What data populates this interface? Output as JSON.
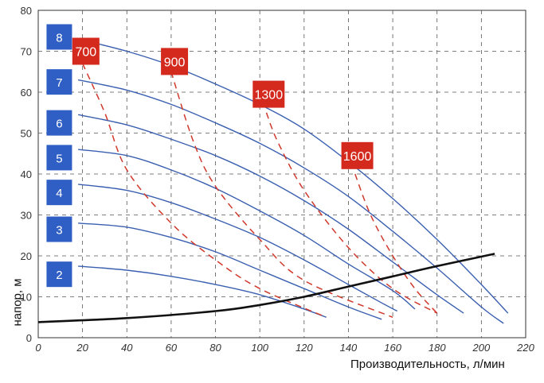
{
  "chart_data": {
    "type": "line",
    "title": "",
    "xlabel": "Производительность, л/мин",
    "ylabel": "напор, м",
    "xlim": [
      0,
      220
    ],
    "ylim": [
      0,
      80
    ],
    "x_ticks": [
      "0",
      "20",
      "40",
      "60",
      "80",
      "100",
      "120",
      "140",
      "160",
      "180",
      "200",
      "220"
    ],
    "y_ticks": [
      "0",
      "10",
      "20",
      "30",
      "40",
      "50",
      "60",
      "70",
      "80"
    ],
    "grid": true,
    "colors": {
      "pump_curves": "#3a5fb0",
      "power_lines": "#d0392b",
      "system_curve": "#111111",
      "pump_badge": "#2f5fc4",
      "power_badge": "#d42a1e"
    },
    "series": [
      {
        "name": "8",
        "kind": "pump",
        "x": [
          18,
          40,
          60,
          80,
          100,
          120,
          140,
          160,
          180,
          200,
          212
        ],
        "y": [
          73,
          70,
          66.5,
          62,
          57,
          51,
          43,
          34,
          24,
          13,
          6
        ]
      },
      {
        "name": "7",
        "kind": "pump",
        "x": [
          18,
          40,
          60,
          80,
          100,
          120,
          140,
          160,
          180,
          200,
          210
        ],
        "y": [
          63,
          60.5,
          57,
          52.5,
          47.5,
          41.5,
          34.5,
          26,
          17,
          7.5,
          3.5
        ]
      },
      {
        "name": "6",
        "kind": "pump",
        "x": [
          18,
          40,
          60,
          80,
          100,
          120,
          140,
          160,
          180,
          192
        ],
        "y": [
          54.5,
          52,
          48.5,
          44.5,
          39.5,
          33.5,
          26.5,
          18.5,
          10.5,
          6
        ]
      },
      {
        "name": "5",
        "kind": "pump",
        "x": [
          18,
          40,
          60,
          80,
          100,
          120,
          140,
          160,
          170
        ],
        "y": [
          46,
          44.5,
          41,
          36.5,
          31,
          25,
          18,
          11.5,
          7
        ]
      },
      {
        "name": "4",
        "kind": "pump",
        "x": [
          18,
          40,
          60,
          80,
          100,
          120,
          140,
          155,
          162
        ],
        "y": [
          37.5,
          36,
          33,
          29,
          24.5,
          19,
          13,
          8.5,
          6.5
        ]
      },
      {
        "name": "3",
        "kind": "pump",
        "x": [
          18,
          40,
          60,
          80,
          100,
          120,
          140,
          155
        ],
        "y": [
          28,
          27,
          24.5,
          21,
          16.5,
          12,
          7.5,
          4.5
        ]
      },
      {
        "name": "2",
        "kind": "pump",
        "x": [
          18,
          40,
          60,
          80,
          100,
          120,
          130
        ],
        "y": [
          17.5,
          16.5,
          15,
          13,
          10.5,
          7,
          5
        ]
      },
      {
        "name": "700",
        "kind": "power",
        "x": [
          20,
          30,
          40,
          60,
          80,
          100,
          130
        ],
        "y": [
          67,
          55,
          41,
          28,
          19,
          12,
          5
        ]
      },
      {
        "name": "900",
        "kind": "power",
        "x": [
          60,
          70,
          80,
          100,
          120,
          160
        ],
        "y": [
          65,
          48,
          37,
          24,
          14,
          5
        ]
      },
      {
        "name": "1300",
        "kind": "power",
        "x": [
          103,
          108,
          120,
          140,
          160,
          180
        ],
        "y": [
          55,
          48,
          36,
          22,
          12,
          6
        ]
      },
      {
        "name": "1600",
        "kind": "power",
        "x": [
          143,
          150,
          160,
          170,
          180
        ],
        "y": [
          40,
          30,
          20,
          12,
          6
        ]
      },
      {
        "name": "system",
        "kind": "system",
        "x": [
          0,
          40,
          80,
          100,
          120,
          140,
          160,
          180,
          206
        ],
        "y": [
          3.8,
          4.8,
          6.5,
          8,
          10,
          12.5,
          15,
          17.5,
          20.5
        ]
      }
    ],
    "annotations": [
      {
        "text": "8",
        "kind": "pump",
        "x": 9.5,
        "y": 73.5
      },
      {
        "text": "7",
        "kind": "pump",
        "x": 9.5,
        "y": 62.5
      },
      {
        "text": "6",
        "kind": "pump",
        "x": 9.5,
        "y": 52.5
      },
      {
        "text": "5",
        "kind": "pump",
        "x": 9.5,
        "y": 44
      },
      {
        "text": "4",
        "kind": "pump",
        "x": 9.5,
        "y": 35.5
      },
      {
        "text": "3",
        "kind": "pump",
        "x": 9.5,
        "y": 26.5
      },
      {
        "text": "2",
        "kind": "pump",
        "x": 9.5,
        "y": 15.5
      },
      {
        "text": "700",
        "kind": "power",
        "x": 21.5,
        "y": 70
      },
      {
        "text": "900",
        "kind": "power",
        "x": 61.5,
        "y": 67.5
      },
      {
        "text": "1300",
        "kind": "power",
        "x": 104,
        "y": 59.5
      },
      {
        "text": "1600",
        "kind": "power",
        "x": 144,
        "y": 44.5
      }
    ]
  }
}
